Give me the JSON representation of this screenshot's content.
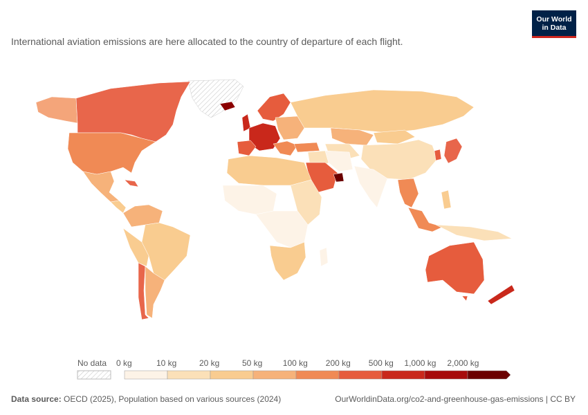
{
  "logo": {
    "line1": "Our World",
    "line2": "in Data"
  },
  "subtitle": "International aviation emissions are here allocated to the country of departure of each flight.",
  "legend": {
    "no_data": "No data",
    "bins": [
      {
        "label": "0 kg",
        "color": "#fdf3e7"
      },
      {
        "label": "10 kg",
        "color": "#fbe0b8"
      },
      {
        "label": "20 kg",
        "color": "#f9cc90"
      },
      {
        "label": "50 kg",
        "color": "#f6b27a"
      },
      {
        "label": "100 kg",
        "color": "#f08a55"
      },
      {
        "label": "200 kg",
        "color": "#e65c3d"
      },
      {
        "label": "500 kg",
        "color": "#c9281b"
      },
      {
        "label": "1,000 kg",
        "color": "#a70b0b"
      },
      {
        "label": "2,000 kg",
        "color": "#6b0000"
      }
    ]
  },
  "footer": {
    "source_label": "Data source:",
    "source_text": "OECD (2025), Population based on various sources (2024)",
    "url_text": "OurWorldinData.org/co2-and-greenhouse-gas-emissions | CC BY"
  }
}
